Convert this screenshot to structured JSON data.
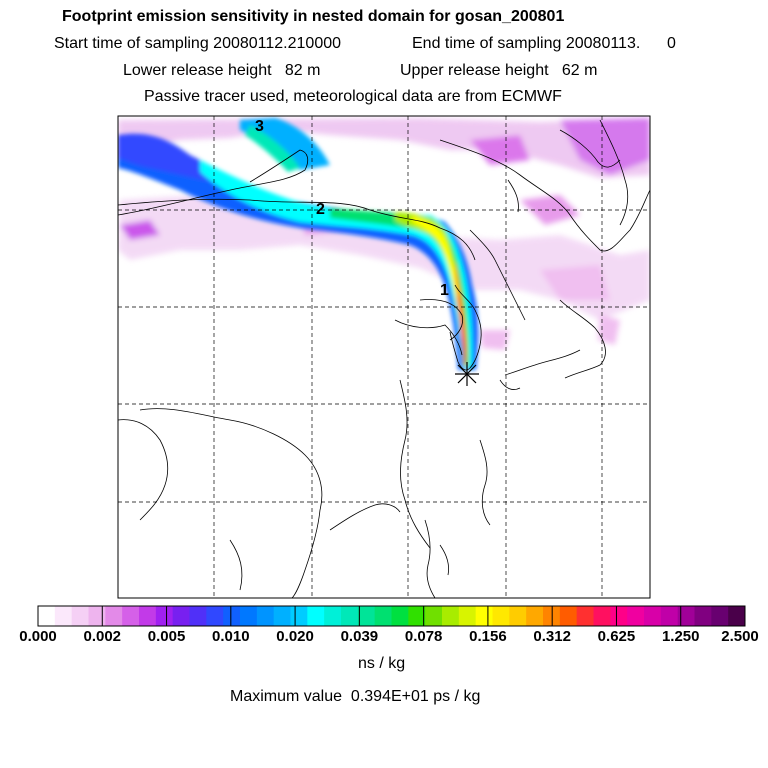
{
  "header": {
    "title": "Footprint emission sensitivity in nested domain for gosan_200801",
    "start_time": "Start time of sampling 20080112.210000",
    "end_time": "End time of sampling 20080113.      0",
    "lower_release": "Lower release height   82 m",
    "upper_release": "Upper release height   62 m",
    "tracer_note": "Passive tracer used, meteorological data are from ECMWF"
  },
  "chart_data": {
    "type": "heatmap",
    "title": "Footprint emission sensitivity in nested domain for gosan_200801",
    "colorbar": {
      "tick_labels": [
        "0.000",
        "0.002",
        "0.005",
        "0.010",
        "0.020",
        "0.039",
        "0.078",
        "0.156",
        "0.312",
        "0.625",
        "1.250",
        "2.500"
      ],
      "tick_values": [
        0.0,
        0.002,
        0.005,
        0.01,
        0.02,
        0.039,
        0.078,
        0.156,
        0.312,
        0.625,
        1.25,
        2.5
      ],
      "unit_label": "ns / kg",
      "colors": [
        "#ffffff",
        "#fbe8fb",
        "#f5d0f5",
        "#eeb4ee",
        "#e38ae8",
        "#d560e8",
        "#c23ae8",
        "#a020f0",
        "#7820f0",
        "#5030f8",
        "#3048ff",
        "#1060ff",
        "#0078ff",
        "#0094ff",
        "#00b0ff",
        "#00ccff",
        "#00ffff",
        "#00f0d8",
        "#00e8b8",
        "#00e498",
        "#00e070",
        "#00e040",
        "#30e000",
        "#70e000",
        "#a8ec00",
        "#d8f400",
        "#ffff00",
        "#ffe800",
        "#ffcc00",
        "#ffa800",
        "#ff8400",
        "#ff5c00",
        "#ff3030",
        "#ff1060",
        "#ff0088",
        "#f000a0",
        "#d800a8",
        "#c000a8",
        "#a00098",
        "#800080",
        "#680070",
        "#4a004a"
      ]
    },
    "trajectory_labels": [
      "1",
      "2",
      "3"
    ],
    "receptor": "gosan",
    "max_value_text": "Maximum value  0.394E+01 ps / kg"
  }
}
